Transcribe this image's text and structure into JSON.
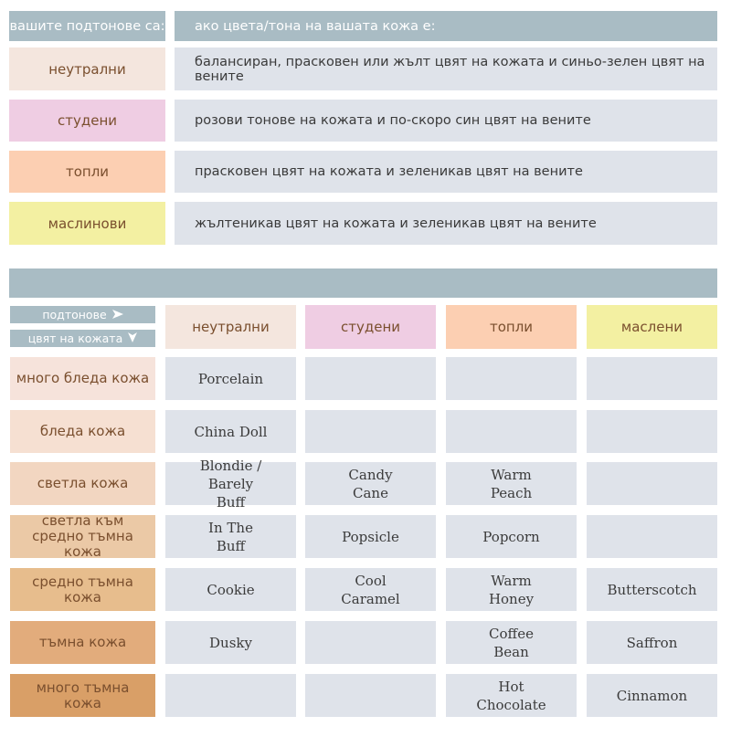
{
  "top_table": {
    "header_left": "вашите подтонове са:",
    "header_right": "ако цвета/тона на вашата кожа е:",
    "rows": [
      {
        "undertone": "неутрални",
        "description": "балансиран, прасковен или жълт цвят на кожата и синьо-зелен цвят на вените",
        "color": "#f4e6de"
      },
      {
        "undertone": "студени",
        "description": "розови тонове на кожата и по-скоро син цвят на вените",
        "color": "#efcde3"
      },
      {
        "undertone": "топли",
        "description": "прасковен цвят на кожата и зеленикав цвят на вените",
        "color": "#fccfb2"
      },
      {
        "undertone": "маслинови",
        "description": "жълтеникав цвят на кожата и зеленикав цвят на вените",
        "color": "#f3f0a2"
      }
    ]
  },
  "bottom_table": {
    "legend_undertones": "подтонове",
    "legend_undertones_icon": "arrow-right-icon",
    "legend_skin": "цвят на кожата",
    "legend_skin_icon": "arrow-down-icon",
    "columns": [
      {
        "label": "неутрални",
        "color": "#f4e6de"
      },
      {
        "label": "студени",
        "color": "#efcde3"
      },
      {
        "label": "топли",
        "color": "#fccfb2"
      },
      {
        "label": "маслени",
        "color": "#f3f0a2"
      }
    ],
    "rows": [
      {
        "skin": "много бледа кожа",
        "color": "#f6e3db",
        "cells": [
          "Porcelain",
          "",
          "",
          ""
        ]
      },
      {
        "skin": "бледа кожа",
        "color": "#f6e0d2",
        "cells": [
          "China Doll",
          "",
          "",
          ""
        ]
      },
      {
        "skin": "светла кожа",
        "color": "#f2d6c1",
        "cells": [
          "Blondie / Barely Buff",
          "Candy Cane",
          "Warm Peach",
          ""
        ]
      },
      {
        "skin": "светла към средно тъмна кожа",
        "color": "#ebc9a6",
        "cells": [
          "In The Buff",
          "Popsicle",
          "Popcorn",
          ""
        ]
      },
      {
        "skin": "средно тъмна кожа",
        "color": "#e7bd8d",
        "cells": [
          "Cookie",
          "Cool Caramel",
          "Warm Honey",
          "Butterscotch"
        ]
      },
      {
        "skin": "тъмна кожа",
        "color": "#e2ac7c",
        "cells": [
          "Dusky",
          "",
          "Coffee Bean",
          "Saffron"
        ]
      },
      {
        "skin": "много тъмна кожа",
        "color": "#d99f67",
        "cells": [
          "",
          "",
          "Hot Chocolate",
          "Cinnamon"
        ]
      }
    ]
  }
}
